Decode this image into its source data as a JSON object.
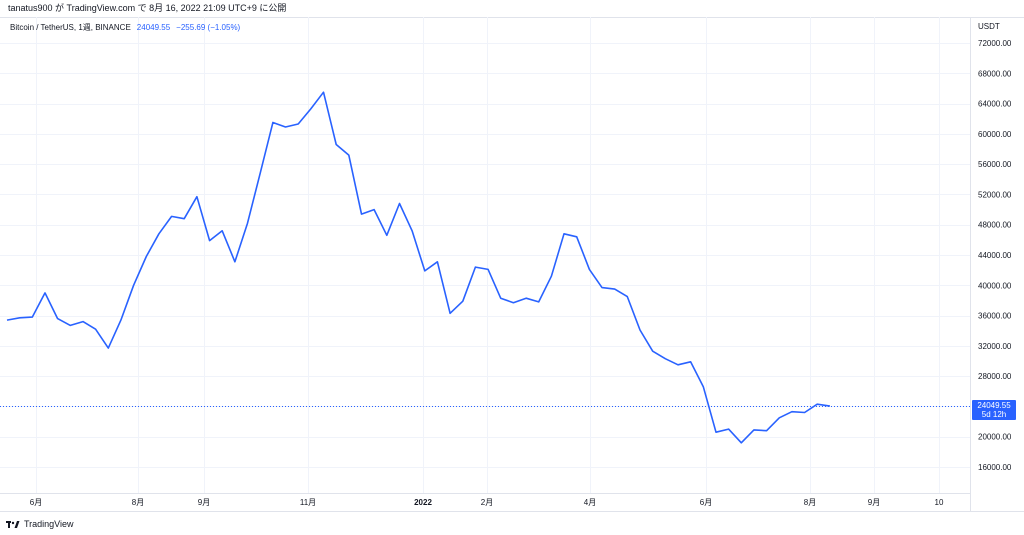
{
  "header": {
    "publish_line": "tanatus900 が TradingView.com で 8月 16, 2022 21:09 UTC+9 に公開"
  },
  "legend": {
    "symbol": "Bitcoin / TetherUS, 1週, BINANCE",
    "last": "24049.55",
    "change": "−255.69 (−1.05%)"
  },
  "axis": {
    "currency": "USDT",
    "price_labels": [
      "72000.00",
      "68000.00",
      "64000.00",
      "60000.00",
      "56000.00",
      "52000.00",
      "48000.00",
      "44000.00",
      "40000.00",
      "36000.00",
      "32000.00",
      "28000.00",
      "20000.00",
      "16000.00"
    ],
    "time_labels": [
      "6月",
      "8月",
      "9月",
      "11月",
      "2022",
      "2月",
      "4月",
      "6月",
      "8月",
      "9月",
      "10"
    ]
  },
  "price_tag": {
    "price": "24049.55",
    "countdown": "5d 12h"
  },
  "footer": {
    "brand": "TradingView"
  },
  "colors": {
    "line": "#2962ff",
    "grid": "#f0f3fa",
    "last_line": "#2962ff"
  },
  "chart_data": {
    "type": "line",
    "title": "",
    "xlabel": "",
    "ylabel": "",
    "y_unit": "USDT",
    "ylim": [
      13500,
      74500
    ],
    "last_price": 24049.55,
    "series": [
      {
        "name": "",
        "x": [
          "2021-05-17",
          "2021-05-24",
          "2021-05-31",
          "2021-06-07",
          "2021-06-14",
          "2021-06-21",
          "2021-06-28",
          "2021-07-05",
          "2021-07-12",
          "2021-07-19",
          "2021-07-26",
          "2021-08-02",
          "2021-08-09",
          "2021-08-16",
          "2021-08-23",
          "2021-08-30",
          "2021-09-06",
          "2021-09-13",
          "2021-09-20",
          "2021-09-27",
          "2021-10-04",
          "2021-10-11",
          "2021-10-18",
          "2021-10-25",
          "2021-11-01",
          "2021-11-08",
          "2021-11-15",
          "2021-11-22",
          "2021-11-29",
          "2021-12-06",
          "2021-12-13",
          "2021-12-20",
          "2021-12-27",
          "2022-01-03",
          "2022-01-10",
          "2022-01-17",
          "2022-01-24",
          "2022-01-31",
          "2022-02-07",
          "2022-02-14",
          "2022-02-21",
          "2022-02-28",
          "2022-03-07",
          "2022-03-14",
          "2022-03-21",
          "2022-03-28",
          "2022-04-04",
          "2022-04-11",
          "2022-04-18",
          "2022-04-25",
          "2022-05-02",
          "2022-05-09",
          "2022-05-16",
          "2022-05-23",
          "2022-05-30",
          "2022-06-06",
          "2022-06-13",
          "2022-06-20",
          "2022-06-27",
          "2022-07-04",
          "2022-07-11",
          "2022-07-18",
          "2022-07-25",
          "2022-08-01",
          "2022-08-08",
          "2022-08-15"
        ],
        "values": [
          35400,
          35700,
          35800,
          39000,
          35600,
          34700,
          35200,
          34200,
          31700,
          35400,
          40000,
          43800,
          46800,
          49100,
          48800,
          51700,
          45900,
          47200,
          43100,
          48200,
          54800,
          61500,
          60900,
          61300,
          63300,
          65500,
          58600,
          57200,
          49400,
          50000,
          46600,
          50800,
          47200,
          41900,
          43100,
          36300,
          37900,
          42400,
          42100,
          38300,
          37700,
          38300,
          37800,
          41200,
          46800,
          46400,
          42100,
          39700,
          39500,
          38500,
          34100,
          31300,
          30300,
          29500,
          29900,
          26600,
          20600,
          21000,
          19200,
          20900,
          20800,
          22500,
          23300,
          23200,
          24300,
          24049.55
        ]
      }
    ]
  }
}
